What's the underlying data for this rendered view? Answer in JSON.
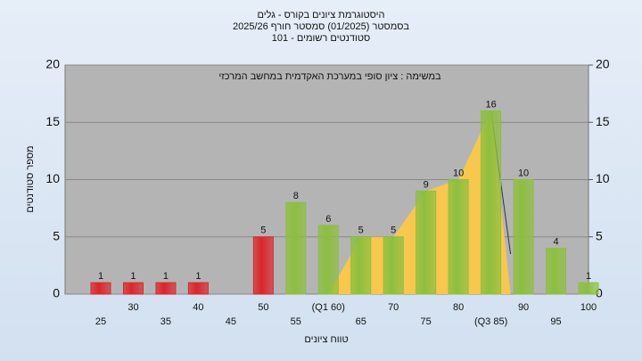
{
  "chart_data": {
    "type": "bar",
    "title": [
      "היסטוגרמת ציונים בקורס - גלים",
      "בסמסטר (01/2025) סמסטר חורף 2025/26",
      "סטודנטים רשומים - 101"
    ],
    "annotation": "במשימה : ציון סופי במערכת האקדמית במחשב המרכזי",
    "x_label": "טווח ציונים",
    "y_label": "מספר סטודנטים",
    "categories": [
      "25",
      "30",
      "35",
      "40",
      "45",
      "50",
      "55",
      "(Q1 60)",
      "65",
      "70",
      "75",
      "80",
      "(Q3 85)",
      "90",
      "95",
      "100"
    ],
    "values": [
      1,
      1,
      1,
      1,
      null,
      5,
      8,
      6,
      5,
      5,
      9,
      10,
      16,
      10,
      4,
      1
    ],
    "colors": [
      "#d9262b",
      "#d9262b",
      "#d9262b",
      "#d9262b",
      "#d9262b",
      "#d9262b",
      "#8cbf3f",
      "#8cbf3f",
      "#8cbf3f",
      "#8cbf3f",
      "#8cbf3f",
      "#8cbf3f",
      "#8cbf3f",
      "#8cbf3f",
      "#8cbf3f",
      "#8cbf3f"
    ],
    "area_color": "#f7c74e",
    "ylim": [
      0,
      20
    ],
    "yticks": [
      0,
      5,
      10,
      15,
      20
    ],
    "y2lim": [
      0,
      20
    ],
    "y2ticks": [
      0,
      5,
      10,
      15,
      20
    ],
    "grid": true
  }
}
